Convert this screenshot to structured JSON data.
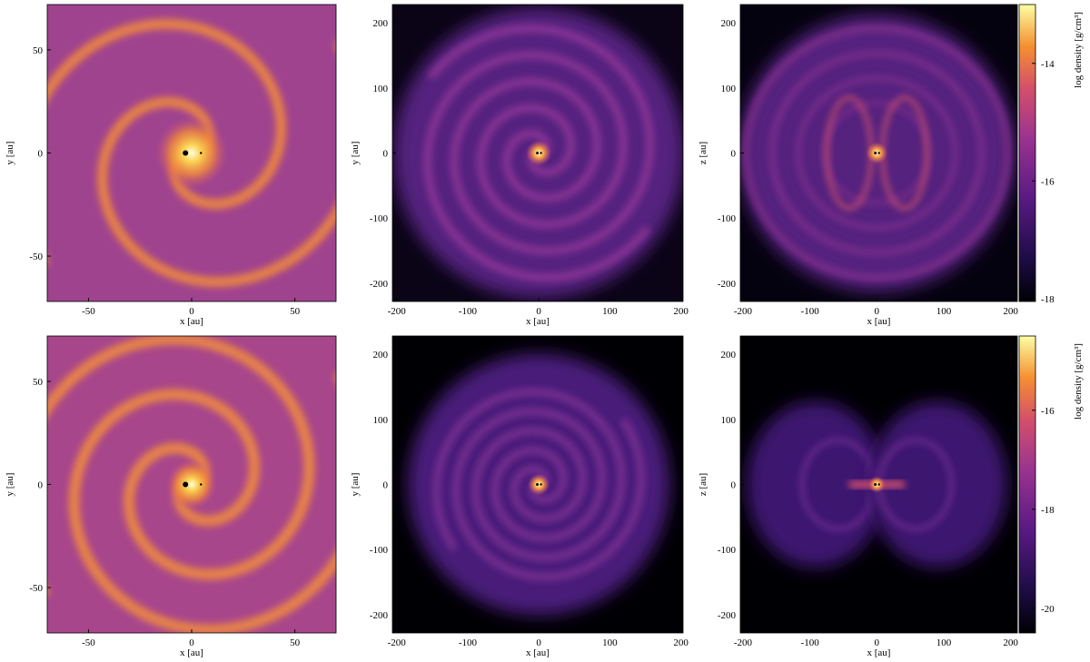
{
  "chart_data": [
    {
      "type": "heatmap",
      "xlabel": "x [au]",
      "ylabel": "y [au]",
      "xlim": [
        -70,
        70
      ],
      "ylim": [
        -72,
        72
      ],
      "xticks": [
        -50,
        0,
        50
      ],
      "yticks": [
        -50,
        0,
        50
      ]
    },
    {
      "type": "heatmap",
      "xlabel": "x [au]",
      "ylabel": "y [au]",
      "xlim": [
        -206,
        203
      ],
      "ylim": [
        -228,
        228
      ],
      "xticks": [
        -200,
        -100,
        0,
        100,
        200
      ],
      "yticks": [
        -200,
        -100,
        0,
        100,
        200
      ]
    },
    {
      "type": "heatmap",
      "xlabel": "x [au]",
      "ylabel": "z [au]",
      "xlim": [
        -204,
        210
      ],
      "ylim": [
        -228,
        228
      ],
      "xticks": [
        -200,
        -100,
        0,
        100,
        200
      ],
      "yticks": [
        -200,
        -100,
        0,
        100,
        200
      ],
      "colorbar": {
        "label": "log density [g/cm³]",
        "clim": [
          -18.05,
          -13
        ],
        "ticks": [
          -18,
          -16,
          -14
        ]
      }
    },
    {
      "type": "heatmap",
      "xlabel": "x [au]",
      "ylabel": "y [au]",
      "xlim": [
        -70,
        70
      ],
      "ylim": [
        -72,
        72
      ],
      "xticks": [
        -50,
        0,
        50
      ],
      "yticks": [
        -50,
        0,
        50
      ]
    },
    {
      "type": "heatmap",
      "xlabel": "x [au]",
      "ylabel": "y [au]",
      "xlim": [
        -206,
        203
      ],
      "ylim": [
        -228,
        228
      ],
      "xticks": [
        -200,
        -100,
        0,
        100,
        200
      ],
      "yticks": [
        -200,
        -100,
        0,
        100,
        200
      ]
    },
    {
      "type": "heatmap",
      "xlabel": "x [au]",
      "ylabel": "z [au]",
      "xlim": [
        -204,
        210
      ],
      "ylim": [
        -228,
        228
      ],
      "xticks": [
        -200,
        -100,
        0,
        100,
        200
      ],
      "yticks": [
        -200,
        -100,
        0,
        100,
        200
      ],
      "colorbar": {
        "label": "log density [g/cm³]",
        "clim": [
          -20.5,
          -14.5
        ],
        "ticks": [
          -20,
          -18,
          -16
        ]
      }
    }
  ]
}
